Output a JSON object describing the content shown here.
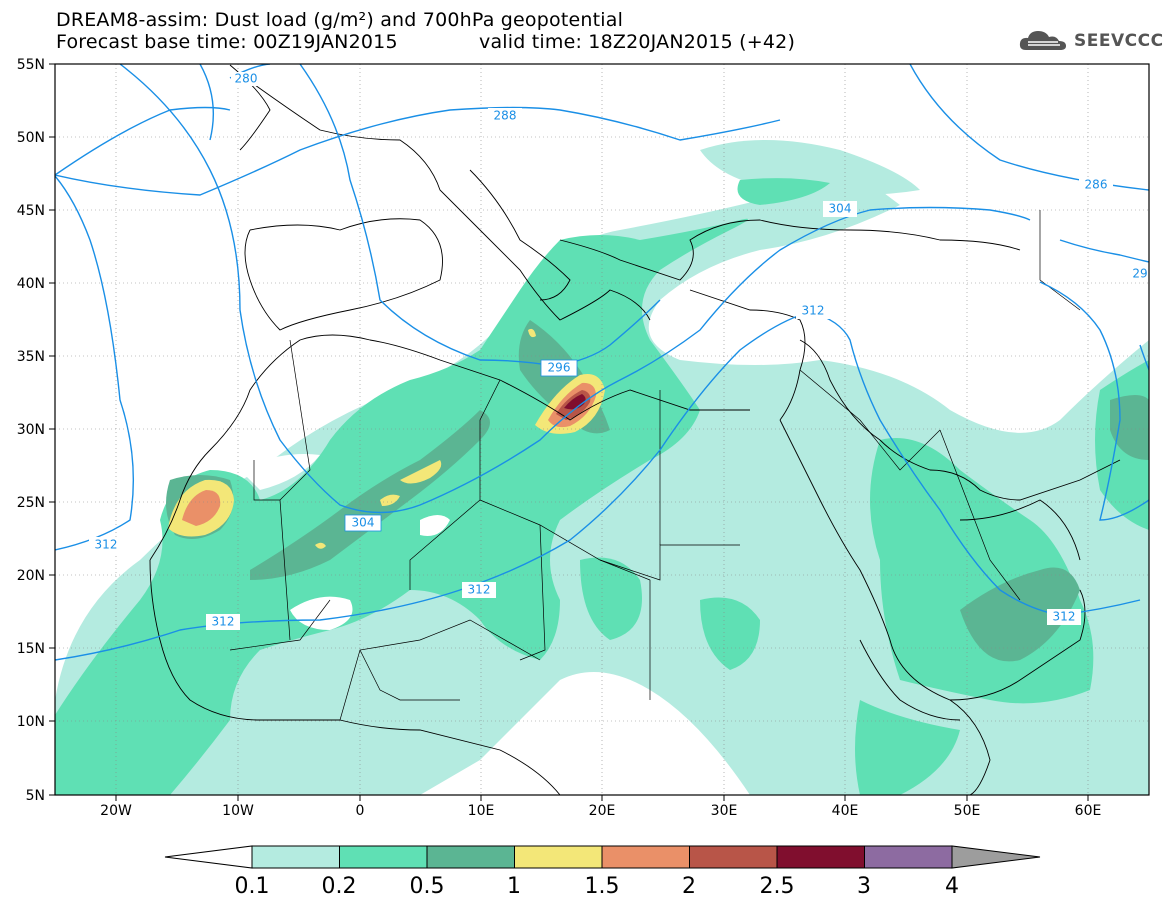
{
  "header": {
    "line1": "DREAM8-assim: Dust load (g/m²) and 700hPa geopotential",
    "base_time": "Forecast base time: 00Z19JAN2015",
    "valid_time": "valid time: 18Z20JAN2015 (+42)"
  },
  "logo": {
    "text": "SEEVCCC",
    "icon": "cloud-logo-icon"
  },
  "map": {
    "lon_range": [
      -25,
      65
    ],
    "lat_range": [
      5,
      55
    ],
    "lon_ticks": [
      "20W",
      "10W",
      "0",
      "10E",
      "20E",
      "30E",
      "40E",
      "50E",
      "60E"
    ],
    "lat_ticks": [
      "55N",
      "50N",
      "45N",
      "40N",
      "35N",
      "30N",
      "25N",
      "20N",
      "15N",
      "10N",
      "5N"
    ],
    "contour_labels": [
      "280",
      "288",
      "286",
      "304",
      "296",
      "312",
      "304",
      "312",
      "312",
      "312",
      "29"
    ],
    "contour_color": "#1a8fe6"
  },
  "colorbar": {
    "labels": [
      "0.1",
      "0.2",
      "0.5",
      "1",
      "1.5",
      "2",
      "2.5",
      "3",
      "4"
    ],
    "colors": [
      "#b4ebe0",
      "#5fe0b4",
      "#5bb593",
      "#f3e778",
      "#ea9068",
      "#b85548",
      "#800e2e",
      "#8d6ba1"
    ],
    "under_color": "#ffffff",
    "over_color": "#9d9d9d"
  }
}
